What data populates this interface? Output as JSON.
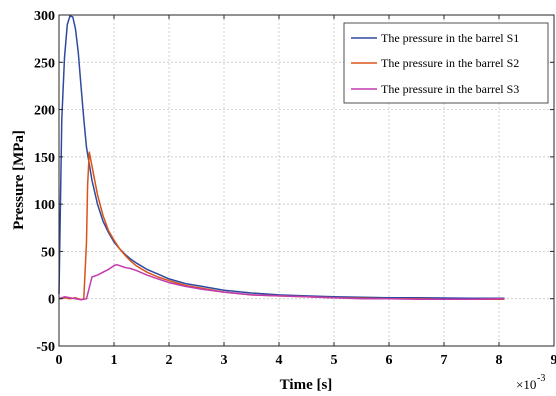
{
  "chart_data": {
    "type": "line",
    "title": "",
    "xlabel": "Time [s]",
    "ylabel": "Pressure [MPa]",
    "x_multiplier_label": "×10",
    "x_multiplier_exponent": "-3",
    "xlim": [
      0,
      9
    ],
    "ylim": [
      -50,
      300
    ],
    "xticks": [
      "0",
      "1",
      "2",
      "3",
      "4",
      "5",
      "6",
      "7",
      "8",
      "9"
    ],
    "yticks": [
      "-50",
      "0",
      "50",
      "100",
      "150",
      "200",
      "250",
      "300"
    ],
    "grid": true,
    "legend_position": "top-right",
    "series": [
      {
        "name": "The pressure in the barrel S1",
        "color": "#2e4a9e",
        "x": [
          0,
          0.05,
          0.1,
          0.15,
          0.2,
          0.25,
          0.3,
          0.35,
          0.4,
          0.45,
          0.5,
          0.6,
          0.7,
          0.8,
          0.9,
          1.0,
          1.1,
          1.2,
          1.3,
          1.4,
          1.6,
          1.8,
          2.0,
          2.3,
          2.6,
          3.0,
          3.5,
          4.0,
          4.5,
          5.0,
          5.5,
          6.0,
          6.5,
          7.0,
          7.5,
          8.0,
          8.1
        ],
        "y": [
          5,
          190,
          255,
          290,
          299,
          298,
          285,
          260,
          225,
          190,
          160,
          125,
          100,
          82,
          70,
          60,
          53,
          47,
          42,
          38,
          31,
          26,
          21,
          16,
          13,
          9,
          6,
          4,
          3,
          2,
          1.5,
          1,
          1,
          0.8,
          0.5,
          0.5,
          0.5
        ]
      },
      {
        "name": "The pressure in the barrel S2",
        "color": "#d95319",
        "x": [
          0,
          0.1,
          0.2,
          0.3,
          0.4,
          0.45,
          0.5,
          0.52,
          0.55,
          0.6,
          0.7,
          0.8,
          0.9,
          1.0,
          1.1,
          1.2,
          1.3,
          1.4,
          1.6,
          1.8,
          2.0,
          2.3,
          2.6,
          3.0,
          3.5,
          4.0,
          4.5,
          5.0,
          5.5,
          6.0,
          6.5,
          7.0,
          7.5,
          8.0,
          8.1
        ],
        "y": [
          0,
          1,
          0,
          1,
          -1,
          0,
          60,
          120,
          155,
          140,
          110,
          88,
          72,
          62,
          53,
          46,
          40,
          35,
          28,
          23,
          19,
          14,
          11,
          7,
          4,
          3,
          2,
          1,
          0.5,
          0,
          0,
          -0.5,
          -0.5,
          -0.5,
          -0.5
        ]
      },
      {
        "name": "The pressure in the barrel S3",
        "color": "#c13bb0",
        "x": [
          0,
          0.1,
          0.2,
          0.3,
          0.4,
          0.5,
          0.6,
          0.7,
          0.8,
          0.9,
          1.0,
          1.05,
          1.1,
          1.2,
          1.3,
          1.4,
          1.6,
          1.8,
          2.0,
          2.3,
          2.6,
          3.0,
          3.5,
          4.0,
          4.5,
          5.0,
          5.5,
          6.0,
          6.5,
          7.0,
          7.5,
          8.0,
          8.1
        ],
        "y": [
          0,
          2,
          1,
          0,
          -1,
          0,
          23,
          25,
          28,
          31,
          35,
          36,
          35,
          33,
          32,
          30,
          25,
          21,
          17,
          13,
          10,
          7,
          4,
          3,
          2,
          1,
          0,
          0,
          -0.5,
          -0.5,
          -0.5,
          0,
          0
        ]
      }
    ]
  }
}
